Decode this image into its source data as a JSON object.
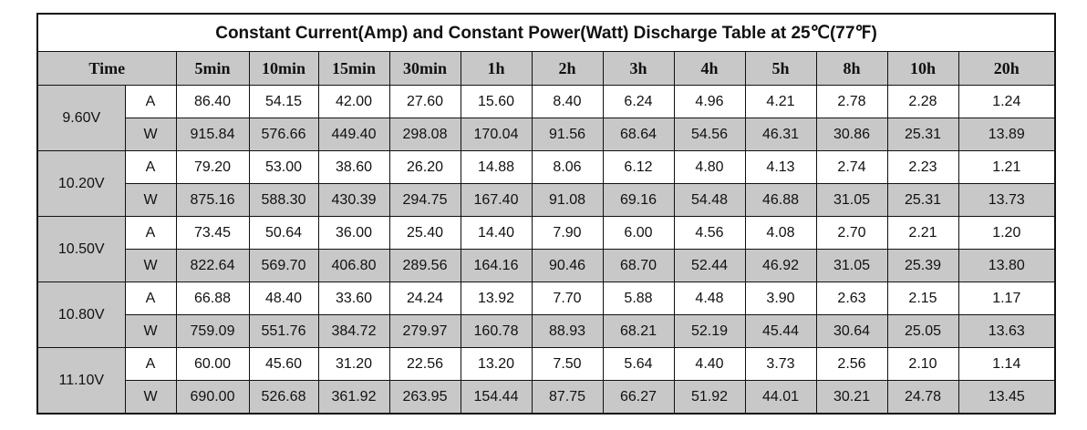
{
  "title": "Constant Current(Amp) and Constant Power(Watt) Discharge Table at 25℃(77℉)",
  "time_label": "Time",
  "columns": [
    "5min",
    "10min",
    "15min",
    "30min",
    "1h",
    "2h",
    "3h",
    "4h",
    "5h",
    "8h",
    "10h",
    "20h"
  ],
  "groups": [
    {
      "voltage": "9.60V",
      "amp": {
        "unit": "A",
        "values": [
          "86.40",
          "54.15",
          "42.00",
          "27.60",
          "15.60",
          "8.40",
          "6.24",
          "4.96",
          "4.21",
          "2.78",
          "2.28",
          "1.24"
        ]
      },
      "watt": {
        "unit": "W",
        "values": [
          "915.84",
          "576.66",
          "449.40",
          "298.08",
          "170.04",
          "91.56",
          "68.64",
          "54.56",
          "46.31",
          "30.86",
          "25.31",
          "13.89"
        ]
      }
    },
    {
      "voltage": "10.20V",
      "amp": {
        "unit": "A",
        "values": [
          "79.20",
          "53.00",
          "38.60",
          "26.20",
          "14.88",
          "8.06",
          "6.12",
          "4.80",
          "4.13",
          "2.74",
          "2.23",
          "1.21"
        ]
      },
      "watt": {
        "unit": "W",
        "values": [
          "875.16",
          "588.30",
          "430.39",
          "294.75",
          "167.40",
          "91.08",
          "69.16",
          "54.48",
          "46.88",
          "31.05",
          "25.31",
          "13.73"
        ]
      }
    },
    {
      "voltage": "10.50V",
      "amp": {
        "unit": "A",
        "values": [
          "73.45",
          "50.64",
          "36.00",
          "25.40",
          "14.40",
          "7.90",
          "6.00",
          "4.56",
          "4.08",
          "2.70",
          "2.21",
          "1.20"
        ]
      },
      "watt": {
        "unit": "W",
        "values": [
          "822.64",
          "569.70",
          "406.80",
          "289.56",
          "164.16",
          "90.46",
          "68.70",
          "52.44",
          "46.92",
          "31.05",
          "25.39",
          "13.80"
        ]
      }
    },
    {
      "voltage": "10.80V",
      "amp": {
        "unit": "A",
        "values": [
          "66.88",
          "48.40",
          "33.60",
          "24.24",
          "13.92",
          "7.70",
          "5.88",
          "4.48",
          "3.90",
          "2.63",
          "2.15",
          "1.17"
        ]
      },
      "watt": {
        "unit": "W",
        "values": [
          "759.09",
          "551.76",
          "384.72",
          "279.97",
          "160.78",
          "88.93",
          "68.21",
          "52.19",
          "45.44",
          "30.64",
          "25.05",
          "13.63"
        ]
      }
    },
    {
      "voltage": "11.10V",
      "amp": {
        "unit": "A",
        "values": [
          "60.00",
          "45.60",
          "31.20",
          "22.56",
          "13.20",
          "7.50",
          "5.64",
          "4.40",
          "3.73",
          "2.56",
          "2.10",
          "1.14"
        ]
      },
      "watt": {
        "unit": "W",
        "values": [
          "690.00",
          "526.68",
          "361.92",
          "263.95",
          "154.44",
          "87.75",
          "66.27",
          "51.92",
          "44.01",
          "30.21",
          "24.78",
          "13.45"
        ]
      }
    }
  ]
}
